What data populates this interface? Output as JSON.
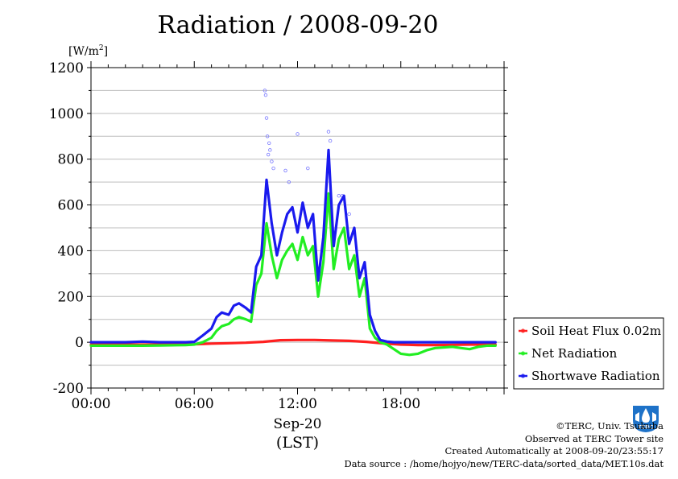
{
  "chart_data": {
    "type": "line",
    "title": "Radiation / 2008-09-20",
    "ylabel_unit": "[W/m",
    "ylabel_sup": "2",
    "ylabel_close": "]",
    "ylim": [
      -200,
      1200
    ],
    "yticks": [
      -200,
      0,
      200,
      400,
      600,
      800,
      1000,
      1200
    ],
    "xlim": [
      0,
      24
    ],
    "xticks": [
      0,
      6,
      12,
      18
    ],
    "xtick_labels": [
      "00:00",
      "06:00",
      "12:00",
      "18:00"
    ],
    "date_label": "Sep-20",
    "xlabel": "(LST)",
    "grid": true,
    "legend_position": "right",
    "series": [
      {
        "name": "Soil Heat Flux 0.02m",
        "color": "#ff2020",
        "x": [
          0,
          3,
          6,
          7,
          8,
          9,
          10,
          11,
          12,
          13,
          14,
          15,
          16,
          17,
          18,
          19,
          20,
          21,
          22,
          23.5
        ],
        "y": [
          -10,
          -10,
          -9,
          -6,
          -4,
          -2,
          2,
          9,
          10,
          10,
          8,
          6,
          2,
          -5,
          -10,
          -12,
          -12,
          -11,
          -10,
          -10
        ]
      },
      {
        "name": "Net Radiation",
        "color": "#22ee22",
        "x": [
          0,
          2,
          3,
          4,
          5,
          5.5,
          6,
          6.5,
          7,
          7.3,
          7.6,
          8,
          8.3,
          8.6,
          9,
          9.3,
          9.6,
          9.9,
          10.2,
          10.5,
          10.8,
          11.1,
          11.4,
          11.7,
          12,
          12.3,
          12.6,
          12.9,
          13.2,
          13.5,
          13.8,
          14.1,
          14.4,
          14.7,
          15,
          15.3,
          15.6,
          15.9,
          16.2,
          16.5,
          16.8,
          17.2,
          17.6,
          18,
          18.5,
          19,
          19.5,
          20,
          21,
          21.5,
          22,
          22.5,
          23,
          23.5
        ],
        "y": [
          -15,
          -15,
          -15,
          -14,
          -13,
          -12,
          -10,
          0,
          20,
          50,
          70,
          80,
          100,
          110,
          100,
          90,
          250,
          300,
          520,
          380,
          280,
          360,
          400,
          430,
          360,
          460,
          380,
          420,
          200,
          350,
          650,
          320,
          450,
          500,
          320,
          380,
          200,
          280,
          60,
          20,
          0,
          -10,
          -30,
          -50,
          -55,
          -50,
          -35,
          -25,
          -20,
          -25,
          -30,
          -20,
          -15,
          -15
        ]
      },
      {
        "name": "Shortwave Radiation",
        "color": "#1a1aee",
        "x": [
          0,
          2,
          3,
          4,
          5,
          5.5,
          6,
          6.5,
          7,
          7.3,
          7.6,
          8,
          8.3,
          8.6,
          9,
          9.3,
          9.6,
          9.9,
          10.2,
          10.5,
          10.8,
          11.1,
          11.4,
          11.7,
          12,
          12.3,
          12.6,
          12.9,
          13.2,
          13.5,
          13.8,
          14.1,
          14.4,
          14.7,
          15,
          15.3,
          15.6,
          15.9,
          16.2,
          16.5,
          16.8,
          17.2,
          17.6,
          18,
          18.5,
          19,
          19.5,
          20,
          21,
          22,
          23,
          23.5
        ],
        "y": [
          0,
          0,
          3,
          0,
          0,
          0,
          2,
          30,
          60,
          110,
          130,
          120,
          160,
          170,
          150,
          130,
          330,
          380,
          710,
          520,
          380,
          480,
          560,
          590,
          480,
          610,
          500,
          560,
          270,
          460,
          840,
          420,
          600,
          640,
          430,
          500,
          280,
          350,
          120,
          50,
          10,
          3,
          0,
          0,
          0,
          0,
          0,
          0,
          0,
          0,
          0,
          0
        ]
      }
    ],
    "outlier_points": {
      "color": "#7777ff",
      "x": [
        10.1,
        10.15,
        10.2,
        10.25,
        10.3,
        10.35,
        10.4,
        10.5,
        10.6,
        11.3,
        11.5,
        12.0,
        12.6,
        13.8,
        13.9,
        14.4,
        14.6,
        15.0
      ],
      "y": [
        1100,
        1080,
        980,
        900,
        820,
        870,
        840,
        790,
        760,
        750,
        700,
        910,
        760,
        920,
        880,
        640,
        640,
        560
      ]
    }
  },
  "credits": {
    "copyright": "©TERC, Univ. Tsukuba",
    "observed": "Observed at TERC Tower site",
    "created": "Created Automatically at 2008-09-20/23:55:17",
    "source": "Data source : /home/hojyo/new/TERC-data/sorted_data/MET.10s.dat"
  },
  "logo": {
    "text": "TERC",
    "color": "#1e72c8"
  }
}
